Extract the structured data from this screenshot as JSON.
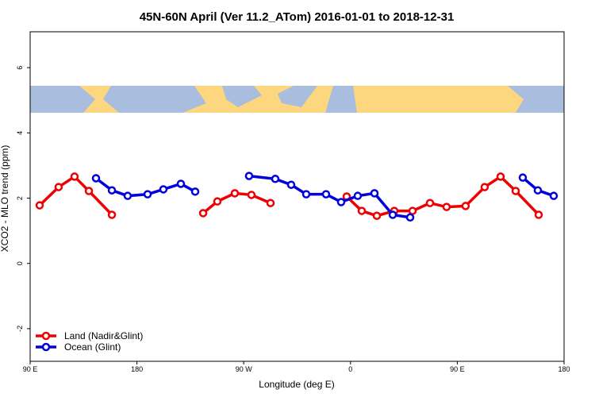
{
  "chart_data": {
    "type": "line",
    "title": "45N-60N April (Ver 11.2_ATom)   2016-01-01 to 2018-12-31",
    "x_label": "Longitude (deg E)",
    "y_label": "XCO2 - MLO trend (ppm)",
    "xlim": [
      90,
      540
    ],
    "ylim": [
      -3,
      7.1
    ],
    "xticks": [
      {
        "value": 90,
        "label": "90 E"
      },
      180,
      {
        "value": 270,
        "label": "90 W"
      },
      {
        "value": 360,
        "label": "0"
      },
      {
        "value": 450,
        "label": "90 E"
      },
      {
        "value": 540,
        "label": "180"
      }
    ],
    "yticks": [
      -2,
      0,
      2,
      4,
      6
    ],
    "legend": "bottom-left",
    "series": [
      {
        "name": "Land (Nadir&Glint)",
        "color": "#ee0000",
        "x": [
          98,
          114,
          127.4,
          139.5,
          158.9,
          200,
          235.8,
          247.8,
          262.5,
          276.5,
          292.6,
          325,
          356.8,
          369.5,
          382.2,
          396.9,
          412.3,
          427,
          441,
          457,
          473.1,
          486.5,
          499.2,
          518.6
        ],
        "values": [
          1.78,
          2.34,
          2.66,
          2.22,
          1.49,
          null,
          1.54,
          1.9,
          2.15,
          2.1,
          1.85,
          null,
          2.05,
          1.61,
          1.46,
          1.61,
          1.61,
          1.85,
          1.73,
          1.76,
          2.34,
          2.66,
          2.22,
          1.49
        ]
      },
      {
        "name": "Ocean (Glint)",
        "color": "#0000dd",
        "x": [
          145.5,
          158.9,
          172.2,
          189,
          202.3,
          217,
          229.1,
          250,
          274.5,
          296.6,
          310,
          322.7,
          339.4,
          352.1,
          366.1,
          380.2,
          395.6,
          410.3,
          460,
          505.2,
          517.9,
          531.3
        ],
        "values": [
          2.61,
          2.24,
          2.07,
          2.12,
          2.27,
          2.44,
          2.2,
          null,
          2.68,
          2.59,
          2.41,
          2.12,
          2.12,
          1.88,
          2.07,
          2.15,
          1.49,
          1.41,
          null,
          2.63,
          2.24,
          2.07
        ]
      }
    ]
  }
}
